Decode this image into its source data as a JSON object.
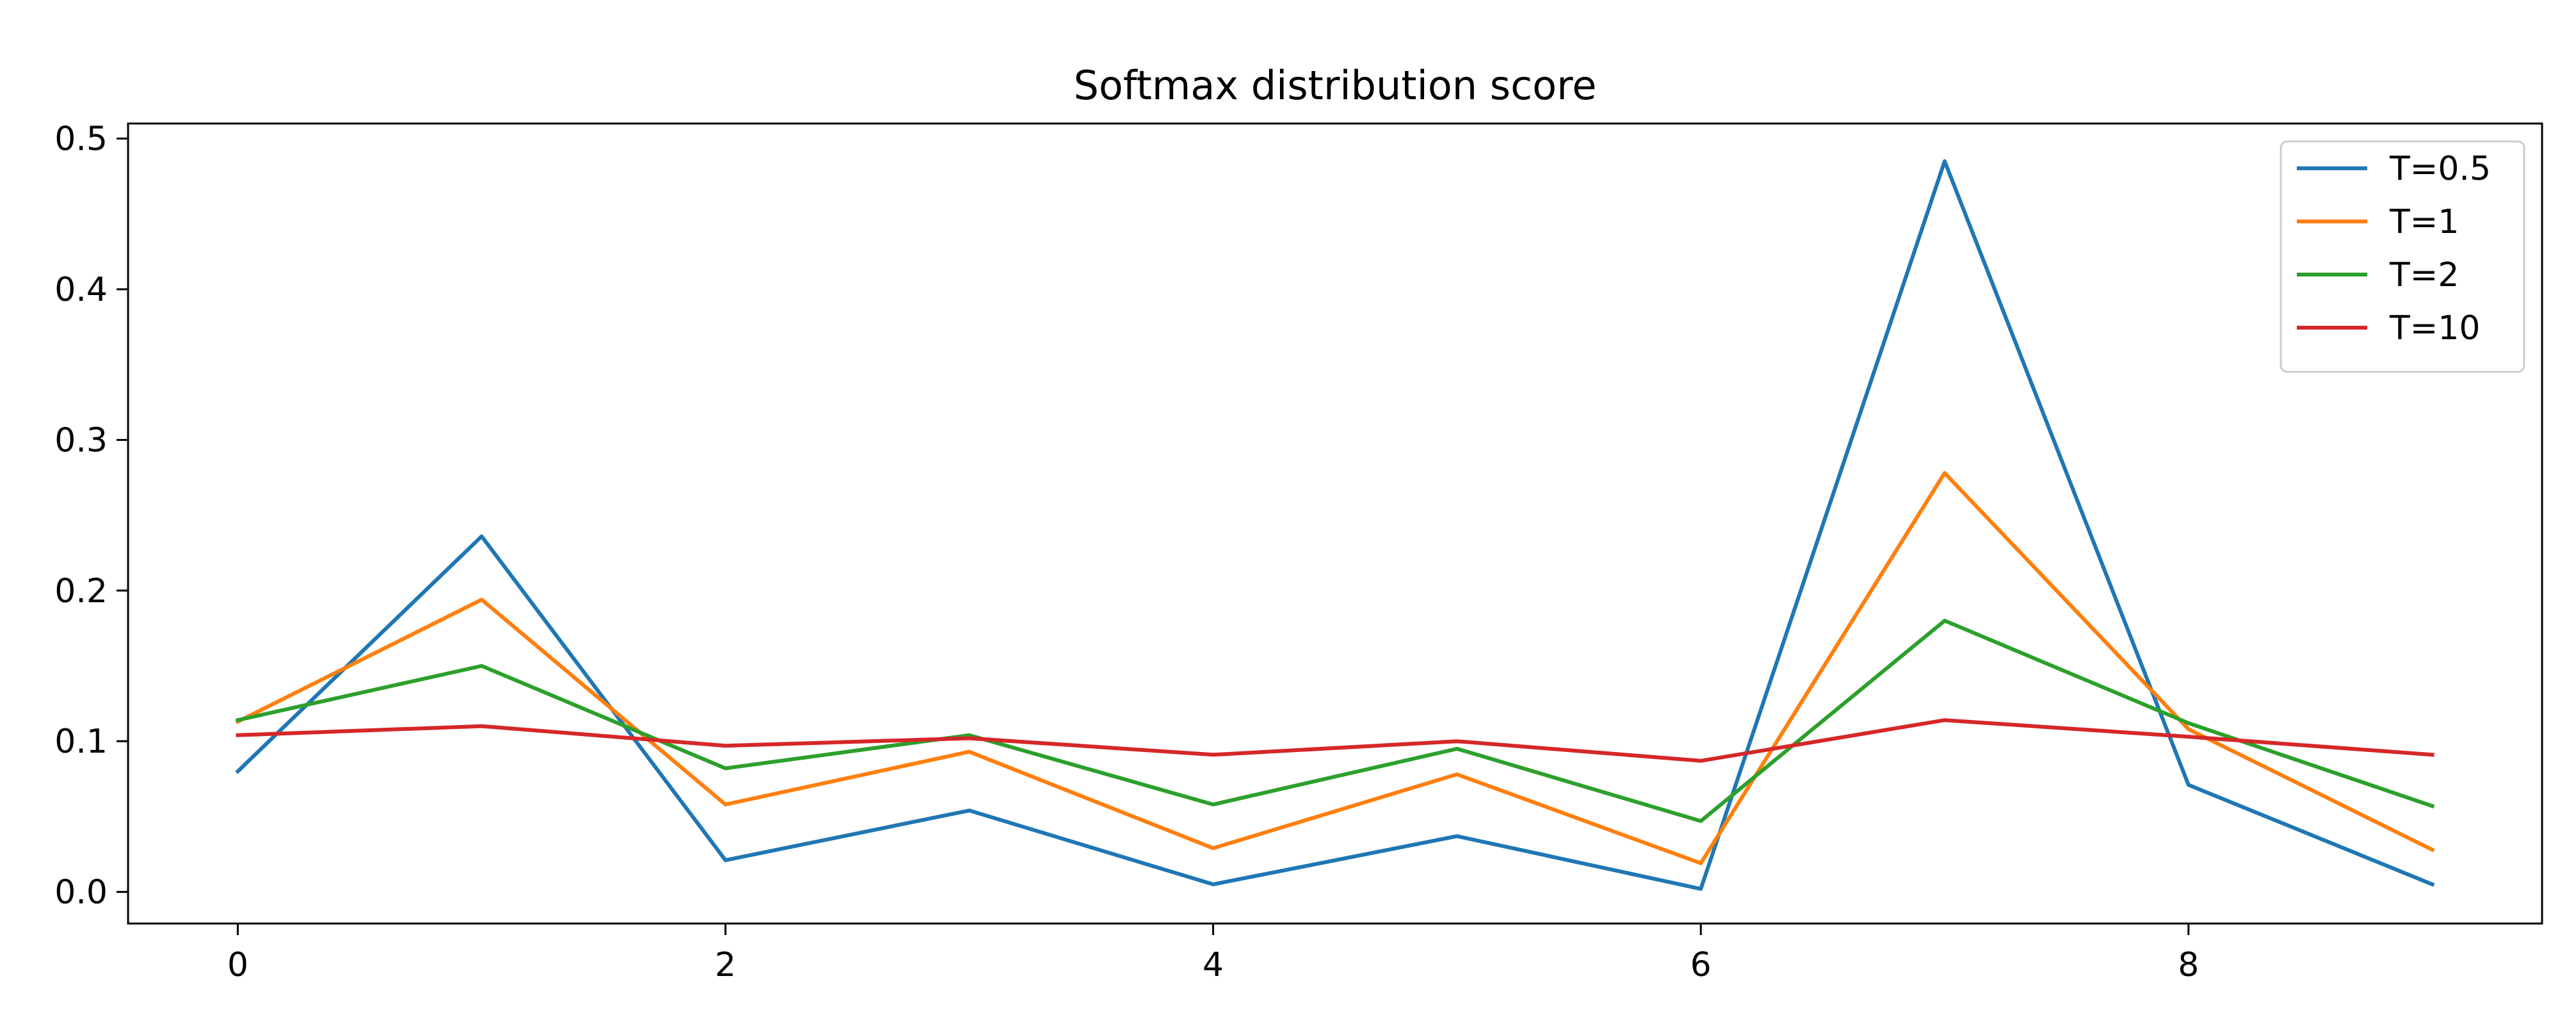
{
  "chart_data": {
    "type": "line",
    "title": "Softmax distribution score",
    "xlabel": "",
    "ylabel": "",
    "x": [
      0,
      1,
      2,
      3,
      4,
      5,
      6,
      7,
      8,
      9
    ],
    "xlim": [
      -0.45,
      9.45
    ],
    "ylim": [
      -0.021,
      0.51
    ],
    "xticks": [
      0,
      2,
      4,
      6,
      8
    ],
    "xtick_labels": [
      "0",
      "2",
      "4",
      "6",
      "8"
    ],
    "yticks": [
      0.0,
      0.1,
      0.2,
      0.3,
      0.4,
      0.5
    ],
    "ytick_labels": [
      "0.0",
      "0.1",
      "0.2",
      "0.3",
      "0.4",
      "0.5"
    ],
    "grid": false,
    "legend_position": "top-right",
    "series": [
      {
        "name": "T=0.5",
        "color": "#1f77b4",
        "values": [
          0.08,
          0.236,
          0.021,
          0.054,
          0.005,
          0.037,
          0.002,
          0.485,
          0.071,
          0.005
        ]
      },
      {
        "name": "T=1",
        "color": "#ff7f0e",
        "values": [
          0.113,
          0.194,
          0.058,
          0.093,
          0.029,
          0.078,
          0.019,
          0.278,
          0.108,
          0.028
        ]
      },
      {
        "name": "T=2",
        "color": "#2ca02c",
        "values": [
          0.114,
          0.15,
          0.082,
          0.104,
          0.058,
          0.095,
          0.047,
          0.18,
          0.112,
          0.057
        ]
      },
      {
        "name": "T=10",
        "color": "#d62728",
        "values": [
          0.104,
          0.11,
          0.097,
          0.102,
          0.091,
          0.1,
          0.087,
          0.114,
          0.103,
          0.091
        ]
      }
    ]
  }
}
